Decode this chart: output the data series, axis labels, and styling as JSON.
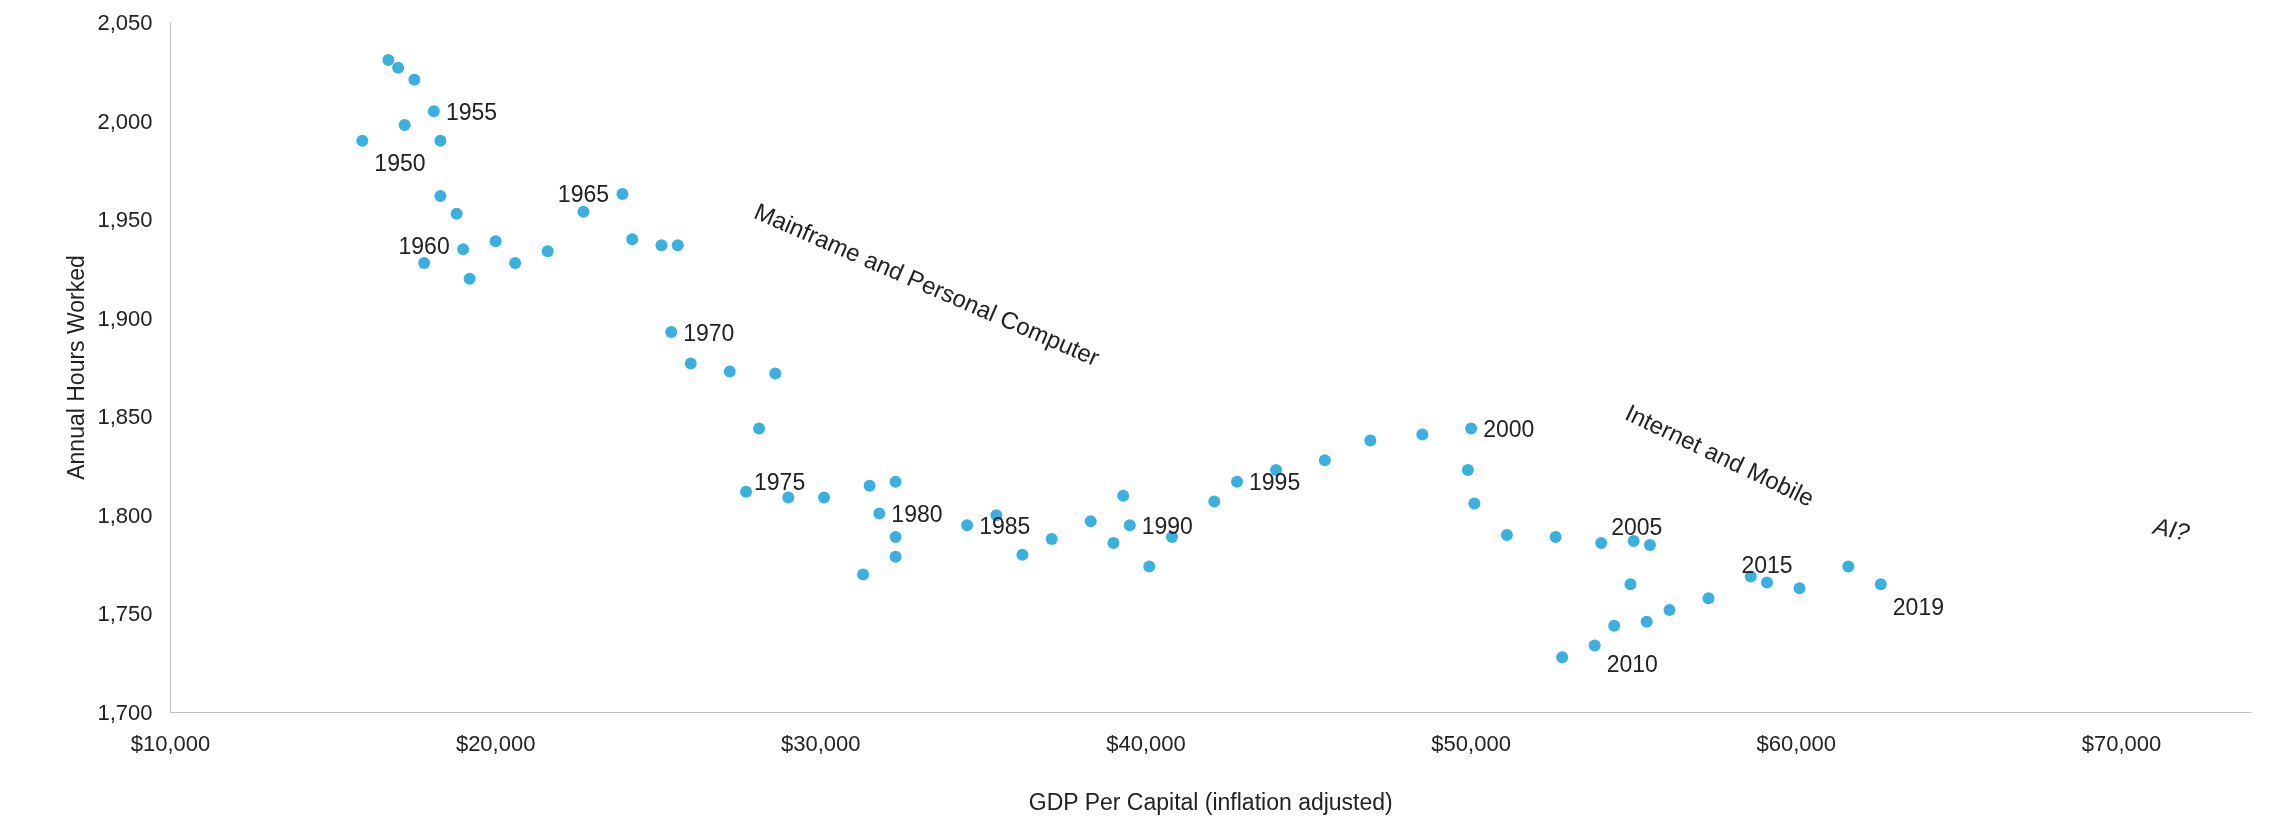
{
  "chart_data": {
    "type": "scatter",
    "xlabel": "GDP Per Capital (inflation adjusted)",
    "ylabel": "Annual Hours Worked",
    "xlim": [
      10000,
      74000
    ],
    "ylim": [
      1700,
      2050
    ],
    "xticks": [
      {
        "value": 10000,
        "label": "$10,000"
      },
      {
        "value": 20000,
        "label": "$20,000"
      },
      {
        "value": 30000,
        "label": "$30,000"
      },
      {
        "value": 40000,
        "label": "$40,000"
      },
      {
        "value": 50000,
        "label": "$50,000"
      },
      {
        "value": 60000,
        "label": "$60,000"
      },
      {
        "value": 70000,
        "label": "$70,000"
      }
    ],
    "yticks": [
      {
        "value": 1700,
        "label": "1,700"
      },
      {
        "value": 1750,
        "label": "1,750"
      },
      {
        "value": 1800,
        "label": "1,800"
      },
      {
        "value": 1850,
        "label": "1,850"
      },
      {
        "value": 1900,
        "label": "1,900"
      },
      {
        "value": 1950,
        "label": "1,950"
      },
      {
        "value": 2000,
        "label": "2,000"
      },
      {
        "value": 2050,
        "label": "2,050"
      }
    ],
    "grid": false,
    "marker": "circle",
    "series": [
      {
        "color": "#3bb0e0",
        "x": [
          15900,
          16700,
          17000,
          17500,
          17200,
          18100,
          18300,
          18300,
          18800,
          20000,
          19000,
          17800,
          19200,
          20600,
          21600,
          22700,
          23900,
          24200,
          25100,
          25600,
          25400,
          26000,
          27200,
          28600,
          28100,
          27700,
          29000,
          30100,
          31500,
          32300,
          31800,
          32300,
          32300,
          31300,
          34500,
          35400,
          36200,
          37100,
          38300,
          39300,
          39000,
          39500,
          40100,
          40800,
          42100,
          42800,
          44000,
          45500,
          46900,
          48500,
          50000,
          49900,
          50100,
          51100,
          52600,
          54000,
          55000,
          55500,
          54900,
          54400,
          55400,
          56100,
          57300,
          53800,
          52800,
          58600,
          59100,
          60100,
          61600,
          62600
        ],
        "values": [
          1990,
          2031,
          2027,
          2021,
          1998,
          2005,
          1990,
          1962,
          1953,
          1939,
          1935,
          1928,
          1920,
          1928,
          1934,
          1954,
          1963,
          1940,
          1937,
          1937,
          1893,
          1877,
          1873,
          1872,
          1844,
          1812,
          1809,
          1809,
          1815,
          1817,
          1801,
          1789,
          1779,
          1770,
          1795,
          1800,
          1780,
          1788,
          1797,
          1810,
          1786,
          1795,
          1774,
          1789,
          1807,
          1817,
          1823,
          1828,
          1838,
          1841,
          1844,
          1823,
          1806,
          1790,
          1789,
          1786,
          1787,
          1785,
          1765,
          1744,
          1746,
          1752,
          1758,
          1734,
          1728,
          1769,
          1766,
          1763,
          1774,
          1765
        ]
      }
    ],
    "annotations": [
      {
        "text": "1950",
        "x": 15900,
        "y": 1990
      },
      {
        "text": "1955",
        "x": 18100,
        "y": 2005
      },
      {
        "text": "1960",
        "x": 17800,
        "y": 1928
      },
      {
        "text": "1965",
        "x": 22700,
        "y": 1954
      },
      {
        "text": "1970",
        "x": 25400,
        "y": 1893
      },
      {
        "text": "1975",
        "x": 27700,
        "y": 1812
      },
      {
        "text": "1980",
        "x": 31800,
        "y": 1801
      },
      {
        "text": "1985",
        "x": 34500,
        "y": 1795
      },
      {
        "text": "1990",
        "x": 39500,
        "y": 1795
      },
      {
        "text": "1995",
        "x": 42800,
        "y": 1817
      },
      {
        "text": "2000",
        "x": 50000,
        "y": 1844
      },
      {
        "text": "2005",
        "x": 54000,
        "y": 1786
      },
      {
        "text": "2010",
        "x": 53800,
        "y": 1734
      },
      {
        "text": "2015",
        "x": 59100,
        "y": 1766
      },
      {
        "text": "2019",
        "x": 62600,
        "y": 1765
      },
      "Mainframe and Personal Computer",
      "Internet and Mobile",
      "AI?"
    ]
  }
}
